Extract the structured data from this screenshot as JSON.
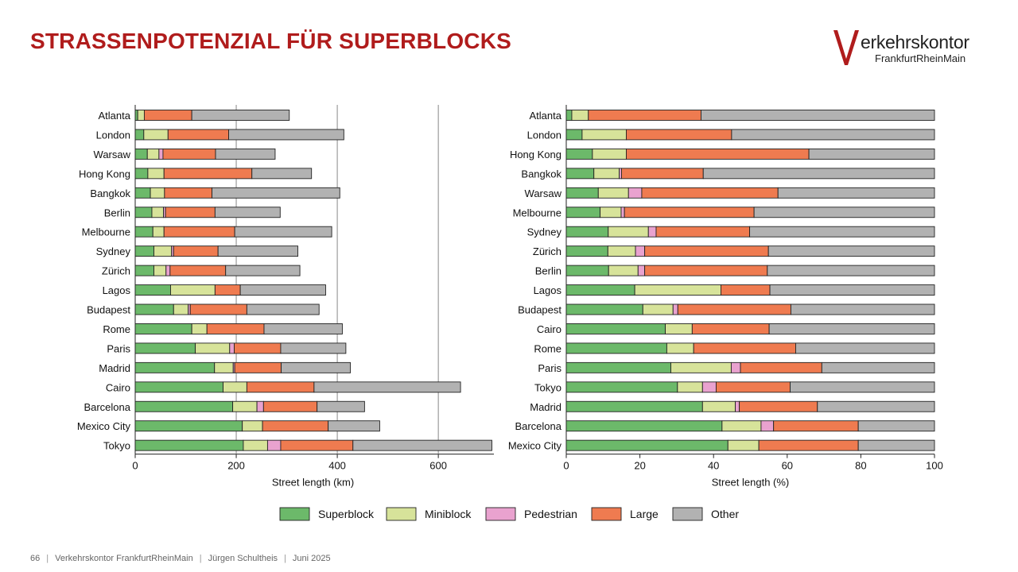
{
  "slide": {
    "title": "STRASSENPOTENZIAL FÜR SUPERBLOCKS",
    "logo": {
      "name": "erkehrskontor",
      "sub": "FrankfurtRheinMain",
      "mark_letter": "V"
    },
    "footer": {
      "page": "66",
      "org": "Verkehrskontor FrankfurtRheinMain",
      "author": "Jürgen Schultheis",
      "date": "Juni 2025",
      "separator": "|"
    }
  },
  "colors": {
    "title": "#b01c1c",
    "Superblock": "#6cb96a",
    "Miniblock": "#d7e39a",
    "Pedestrian": "#e9a2cf",
    "Large": "#ef7b50",
    "Other": "#b2b2b2",
    "gridline": "#888888"
  },
  "chart_data": [
    {
      "type": "bar",
      "orientation": "horizontal",
      "stacked": true,
      "xlabel": "Street length (km)",
      "xlim": [
        0,
        710
      ],
      "xticks": [
        0,
        200,
        400,
        600
      ],
      "grid": "vertical",
      "categories": [
        "Atlanta",
        "London",
        "Warsaw",
        "Hong Kong",
        "Bangkok",
        "Berlin",
        "Melbourne",
        "Sydney",
        "Zürich",
        "Lagos",
        "Budapest",
        "Rome",
        "Paris",
        "Madrid",
        "Cairo",
        "Barcelona",
        "Mexico City",
        "Tokyo"
      ],
      "series": [
        {
          "name": "Superblock",
          "values": [
            5,
            17,
            24,
            25,
            30,
            33,
            35,
            37,
            37,
            70,
            76,
            112,
            119,
            157,
            174,
            193,
            212,
            214
          ]
        },
        {
          "name": "Miniblock",
          "values": [
            13,
            48,
            23,
            32,
            28,
            23,
            22,
            35,
            24,
            88,
            29,
            30,
            68,
            37,
            47,
            48,
            40,
            48
          ]
        },
        {
          "name": "Pedestrian",
          "values": [
            0,
            0,
            8,
            0,
            0,
            4,
            0,
            4,
            8,
            0,
            4,
            0,
            9,
            3,
            0,
            13,
            0,
            26
          ]
        },
        {
          "name": "Large",
          "values": [
            94,
            120,
            104,
            174,
            94,
            98,
            140,
            88,
            110,
            50,
            112,
            113,
            92,
            92,
            133,
            106,
            130,
            143
          ]
        },
        {
          "name": "Other",
          "values": [
            193,
            228,
            118,
            118,
            253,
            129,
            192,
            158,
            147,
            169,
            143,
            155,
            129,
            137,
            290,
            94,
            102,
            275
          ]
        }
      ]
    },
    {
      "type": "bar",
      "orientation": "horizontal",
      "stacked": true,
      "xlabel": "Street length (%)",
      "xlim": [
        0,
        100
      ],
      "xticks": [
        0,
        20,
        40,
        60,
        80,
        100
      ],
      "grid": "none",
      "categories": [
        "Atlanta",
        "London",
        "Hong Kong",
        "Bangkok",
        "Warsaw",
        "Melbourne",
        "Sydney",
        "Zürich",
        "Berlin",
        "Lagos",
        "Budapest",
        "Cairo",
        "Rome",
        "Paris",
        "Tokyo",
        "Madrid",
        "Barcelona",
        "Mexico City"
      ],
      "series": [
        {
          "name": "Superblock",
          "values": [
            1.5,
            4.3,
            7.1,
            7.5,
            8.7,
            9.2,
            11.4,
            11.3,
            11.5,
            18.6,
            20.8,
            26.9,
            27.3,
            28.4,
            30.2,
            37.0,
            42.3,
            43.9
          ]
        },
        {
          "name": "Miniblock",
          "values": [
            4.5,
            12.0,
            9.2,
            6.9,
            8.2,
            5.7,
            10.9,
            7.5,
            8.0,
            23.4,
            8.2,
            7.3,
            7.3,
            16.4,
            6.8,
            8.9,
            10.6,
            8.4
          ]
        },
        {
          "name": "Pedestrian",
          "values": [
            0,
            0,
            0,
            0.6,
            3.6,
            0.9,
            2.1,
            2.5,
            1.8,
            0,
            1.3,
            0,
            0,
            2.5,
            3.7,
            1.1,
            3.4,
            0
          ]
        },
        {
          "name": "Large",
          "values": [
            30.6,
            28.6,
            49.6,
            22.2,
            37.0,
            35.2,
            25.4,
            33.6,
            33.3,
            13.3,
            30.7,
            20.9,
            27.7,
            22.1,
            20.1,
            21.2,
            23.0,
            27.0
          ]
        },
        {
          "name": "Other",
          "values": [
            63.4,
            55.1,
            34.1,
            62.8,
            42.5,
            49.0,
            50.2,
            45.1,
            45.4,
            44.7,
            39.0,
            44.9,
            37.7,
            30.6,
            39.2,
            31.8,
            20.7,
            20.7
          ]
        }
      ]
    }
  ],
  "legend": {
    "placement": "bottom",
    "entries": [
      "Superblock",
      "Miniblock",
      "Pedestrian",
      "Large",
      "Other"
    ]
  }
}
